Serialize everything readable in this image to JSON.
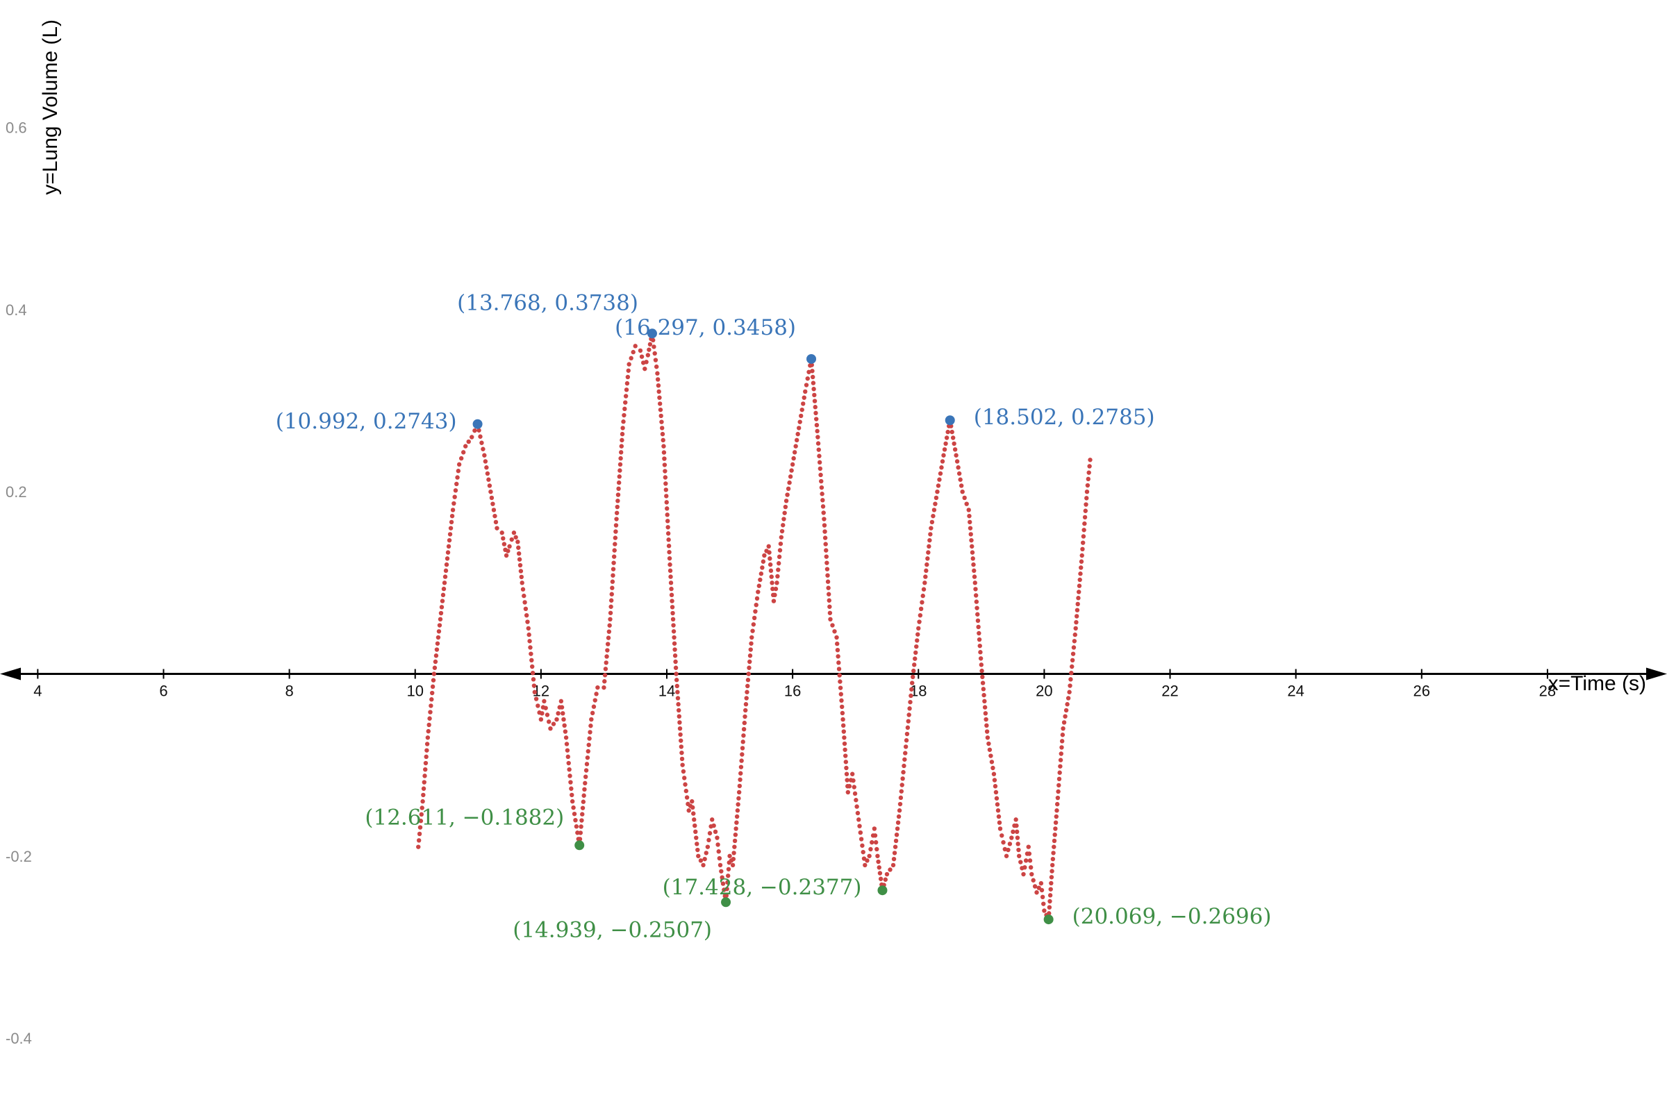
{
  "chart_data": {
    "type": "scatter",
    "title": "",
    "xlabel": "x=Time (s)",
    "ylabel": "y=Lung Volume (L)",
    "xlim": [
      3.4,
      29.9
    ],
    "ylim": [
      -0.48,
      0.74
    ],
    "x_ticks": [
      "4",
      "6",
      "8",
      "10",
      "12",
      "14",
      "16",
      "18",
      "20",
      "22",
      "24",
      "26",
      "28"
    ],
    "y_ticks": [
      "0.6",
      "0.4",
      "0.2",
      "-0.2",
      "-0.4"
    ],
    "grid": false,
    "colors": {
      "series": "#cc4444",
      "maxima": "#3a75b8",
      "minima": "#3f8f46",
      "axis": "#000000"
    },
    "series": [
      {
        "curve": [
          [
            10.05,
            -0.19
          ],
          [
            10.12,
            -0.14
          ],
          [
            10.2,
            -0.07
          ],
          [
            10.3,
            0.0
          ],
          [
            10.4,
            0.06
          ],
          [
            10.5,
            0.12
          ],
          [
            10.6,
            0.18
          ],
          [
            10.7,
            0.23
          ],
          [
            10.8,
            0.25
          ],
          [
            10.9,
            0.26
          ],
          [
            10.992,
            0.2743
          ],
          [
            11.1,
            0.24
          ],
          [
            11.2,
            0.2
          ],
          [
            11.3,
            0.16
          ],
          [
            11.38,
            0.155
          ],
          [
            11.45,
            0.13
          ],
          [
            11.5,
            0.14
          ],
          [
            11.57,
            0.155
          ],
          [
            11.63,
            0.145
          ],
          [
            11.7,
            0.1
          ],
          [
            11.8,
            0.05
          ],
          [
            11.9,
            -0.02
          ],
          [
            12.0,
            -0.05
          ],
          [
            12.05,
            -0.03
          ],
          [
            12.15,
            -0.06
          ],
          [
            12.25,
            -0.05
          ],
          [
            12.32,
            -0.03
          ],
          [
            12.4,
            -0.07
          ],
          [
            12.5,
            -0.14
          ],
          [
            12.611,
            -0.1882
          ],
          [
            12.7,
            -0.12
          ],
          [
            12.8,
            -0.05
          ],
          [
            12.9,
            -0.015
          ],
          [
            13.0,
            -0.015
          ],
          [
            13.1,
            0.06
          ],
          [
            13.2,
            0.17
          ],
          [
            13.3,
            0.27
          ],
          [
            13.4,
            0.34
          ],
          [
            13.5,
            0.36
          ],
          [
            13.58,
            0.355
          ],
          [
            13.65,
            0.335
          ],
          [
            13.7,
            0.35
          ],
          [
            13.768,
            0.3738
          ],
          [
            13.85,
            0.33
          ],
          [
            13.95,
            0.25
          ],
          [
            14.05,
            0.12
          ],
          [
            14.15,
            0.0
          ],
          [
            14.25,
            -0.1
          ],
          [
            14.35,
            -0.15
          ],
          [
            14.4,
            -0.14
          ],
          [
            14.5,
            -0.2
          ],
          [
            14.58,
            -0.21
          ],
          [
            14.65,
            -0.19
          ],
          [
            14.72,
            -0.16
          ],
          [
            14.8,
            -0.18
          ],
          [
            14.85,
            -0.21
          ],
          [
            14.939,
            -0.2507
          ],
          [
            15.0,
            -0.2
          ],
          [
            15.05,
            -0.21
          ],
          [
            15.15,
            -0.13
          ],
          [
            15.25,
            -0.04
          ],
          [
            15.35,
            0.04
          ],
          [
            15.45,
            0.09
          ],
          [
            15.55,
            0.13
          ],
          [
            15.62,
            0.14
          ],
          [
            15.7,
            0.08
          ],
          [
            15.75,
            0.1
          ],
          [
            15.82,
            0.15
          ],
          [
            15.9,
            0.19
          ],
          [
            16.0,
            0.23
          ],
          [
            16.1,
            0.27
          ],
          [
            16.2,
            0.31
          ],
          [
            16.297,
            0.3458
          ],
          [
            16.4,
            0.26
          ],
          [
            16.5,
            0.17
          ],
          [
            16.6,
            0.06
          ],
          [
            16.7,
            0.04
          ],
          [
            16.8,
            -0.05
          ],
          [
            16.88,
            -0.13
          ],
          [
            16.95,
            -0.11
          ],
          [
            17.05,
            -0.16
          ],
          [
            17.15,
            -0.21
          ],
          [
            17.22,
            -0.2
          ],
          [
            17.3,
            -0.17
          ],
          [
            17.35,
            -0.2
          ],
          [
            17.428,
            -0.2377
          ],
          [
            17.5,
            -0.22
          ],
          [
            17.6,
            -0.21
          ],
          [
            17.7,
            -0.15
          ],
          [
            17.8,
            -0.08
          ],
          [
            17.9,
            -0.01
          ],
          [
            18.0,
            0.05
          ],
          [
            18.1,
            0.1
          ],
          [
            18.2,
            0.16
          ],
          [
            18.3,
            0.2
          ],
          [
            18.4,
            0.24
          ],
          [
            18.502,
            0.2785
          ],
          [
            18.6,
            0.24
          ],
          [
            18.7,
            0.2
          ],
          [
            18.8,
            0.18
          ],
          [
            18.9,
            0.1
          ],
          [
            19.0,
            0.01
          ],
          [
            19.1,
            -0.07
          ],
          [
            19.2,
            -0.11
          ],
          [
            19.3,
            -0.17
          ],
          [
            19.4,
            -0.2
          ],
          [
            19.48,
            -0.18
          ],
          [
            19.55,
            -0.16
          ],
          [
            19.6,
            -0.2
          ],
          [
            19.67,
            -0.22
          ],
          [
            19.75,
            -0.19
          ],
          [
            19.8,
            -0.22
          ],
          [
            19.88,
            -0.24
          ],
          [
            19.95,
            -0.23
          ],
          [
            20.0,
            -0.26
          ],
          [
            20.069,
            -0.2696
          ],
          [
            20.13,
            -0.21
          ],
          [
            20.2,
            -0.15
          ],
          [
            20.3,
            -0.06
          ],
          [
            20.4,
            -0.02
          ],
          [
            20.5,
            0.05
          ],
          [
            20.6,
            0.13
          ],
          [
            20.68,
            0.2
          ],
          [
            20.73,
            0.235
          ]
        ]
      }
    ],
    "maxima": [
      {
        "x": 10.992,
        "y": 0.2743,
        "label": "(10.992, 0.2743)"
      },
      {
        "x": 13.768,
        "y": 0.3738,
        "label": "(13.768, 0.3738)"
      },
      {
        "x": 16.297,
        "y": 0.3458,
        "label": "(16.297, 0.3458)"
      },
      {
        "x": 18.502,
        "y": 0.2785,
        "label": "(18.502, 0.2785)"
      }
    ],
    "minima": [
      {
        "x": 12.611,
        "y": -0.1882,
        "label": "(12.611, −0.1882)"
      },
      {
        "x": 14.939,
        "y": -0.2507,
        "label": "(14.939, −0.2507)"
      },
      {
        "x": 17.428,
        "y": -0.2377,
        "label": "(17.428, −0.2377)"
      },
      {
        "x": 20.069,
        "y": -0.2696,
        "label": "(20.069, −0.2696)"
      }
    ]
  }
}
